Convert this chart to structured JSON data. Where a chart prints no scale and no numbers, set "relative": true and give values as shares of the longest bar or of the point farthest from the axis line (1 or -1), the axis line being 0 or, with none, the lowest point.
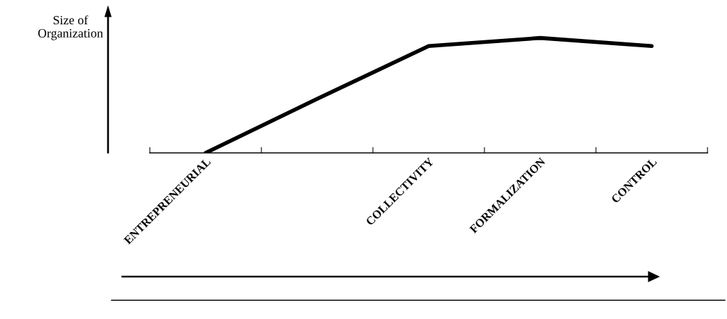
{
  "chart_data": {
    "type": "line",
    "relative": true,
    "ylabel": "Size of\nOrganization",
    "categories": [
      "ENTREPRENEURIAL",
      null,
      "COLLECTIVITY",
      "FORMALIZATION",
      "CONTROL"
    ],
    "series": [
      {
        "color": "#000000",
        "values": [
          0,
          0.47,
          0.93,
          1.0,
          0.93
        ]
      }
    ],
    "marker": "none",
    "line_style": "solid",
    "grid": false
  }
}
